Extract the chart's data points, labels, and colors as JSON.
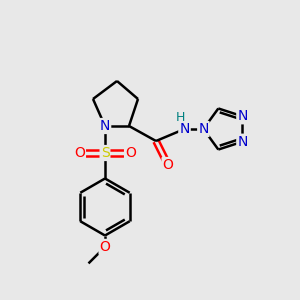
{
  "background_color": "#e8e8e8",
  "bond_color": "#000000",
  "atom_colors": {
    "N": "#0000cc",
    "O": "#ff0000",
    "S": "#cccc00",
    "H": "#008080",
    "C": "#000000"
  },
  "figsize": [
    3.0,
    3.0
  ],
  "dpi": 100
}
